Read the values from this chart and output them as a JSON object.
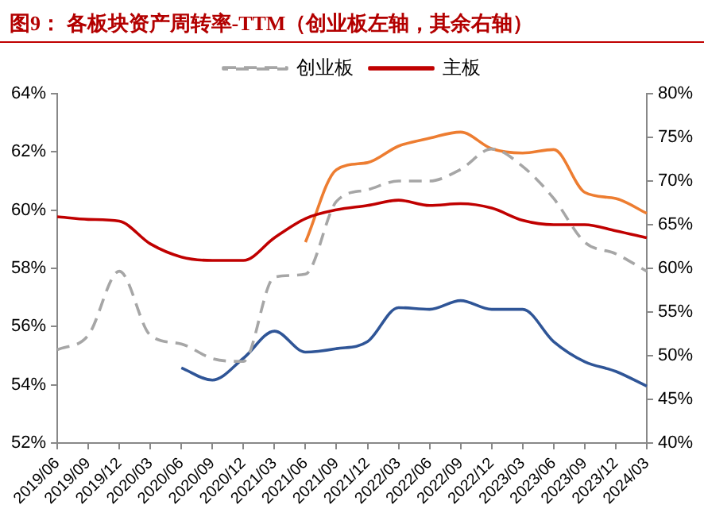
{
  "chart_data": {
    "type": "line",
    "title": "图9：  各板块资产周转率-TTM（创业板左轴，其余右轴）",
    "categories": [
      "2019/06",
      "2019/09",
      "2019/12",
      "2020/03",
      "2020/06",
      "2020/09",
      "2020/12",
      "2021/03",
      "2021/06",
      "2021/09",
      "2021/12",
      "2022/03",
      "2022/06",
      "2022/09",
      "2022/12",
      "2023/03",
      "2023/06",
      "2023/09",
      "2023/12",
      "2024/03"
    ],
    "series": [
      {
        "name": "创业板",
        "color": "#a6a6a6",
        "line_style": "dashed",
        "values": [
          55.2,
          55.7,
          57.9,
          55.7,
          55.4,
          54.9,
          54.8,
          57.7,
          57.8,
          60.3,
          60.7,
          61.0,
          61.0,
          61.4,
          62.1,
          61.5,
          60.4,
          58.9,
          58.5,
          57.9
        ]
      },
      {
        "name": "主板",
        "color": "#c00000",
        "axis": "y2",
        "values": [
          65.9,
          65.6,
          65.4,
          62.8,
          61.3,
          60.9,
          60.9,
          63.5,
          65.7,
          66.7,
          67.2,
          67.8,
          67.2,
          67.4,
          66.9,
          65.5,
          65.0,
          65.0,
          64.3,
          63.5
        ]
      },
      {
        "color": "#ed7d31",
        "axis": "y2",
        "values": [
          null,
          null,
          null,
          null,
          null,
          null,
          null,
          null,
          63.0,
          71.3,
          72.1,
          74.0,
          74.9,
          75.6,
          73.7,
          73.2,
          73.6,
          68.7,
          68.0,
          66.3
        ]
      },
      {
        "color": "#2f5597",
        "axis": "y2",
        "values": [
          null,
          null,
          null,
          null,
          48.6,
          47.2,
          49.7,
          52.8,
          50.4,
          50.8,
          51.6,
          55.5,
          55.3,
          56.3,
          55.3,
          55.3,
          51.6,
          49.3,
          48.2,
          46.5
        ]
      }
    ],
    "ylim": [
      52,
      64
    ],
    "yticks": [
      {
        "value": 52,
        "label": "52%"
      },
      {
        "value": 54,
        "label": "54%"
      },
      {
        "value": 56,
        "label": "56%"
      },
      {
        "value": 58,
        "label": "58%"
      },
      {
        "value": 60,
        "label": "60%"
      },
      {
        "value": 62,
        "label": "62%"
      },
      {
        "value": 64,
        "label": "64%"
      }
    ],
    "y2lim": [
      40,
      80
    ],
    "y2ticks": [
      {
        "value": 40,
        "label": "40%"
      },
      {
        "value": 45,
        "label": "45%"
      },
      {
        "value": 50,
        "label": "50%"
      },
      {
        "value": 55,
        "label": "55%"
      },
      {
        "value": 60,
        "label": "60%"
      },
      {
        "value": 65,
        "label": "65%"
      },
      {
        "value": 70,
        "label": "70%"
      },
      {
        "value": 75,
        "label": "75%"
      },
      {
        "value": 80,
        "label": "80%"
      }
    ],
    "grid": false,
    "legend": "top",
    "marker": "none"
  }
}
